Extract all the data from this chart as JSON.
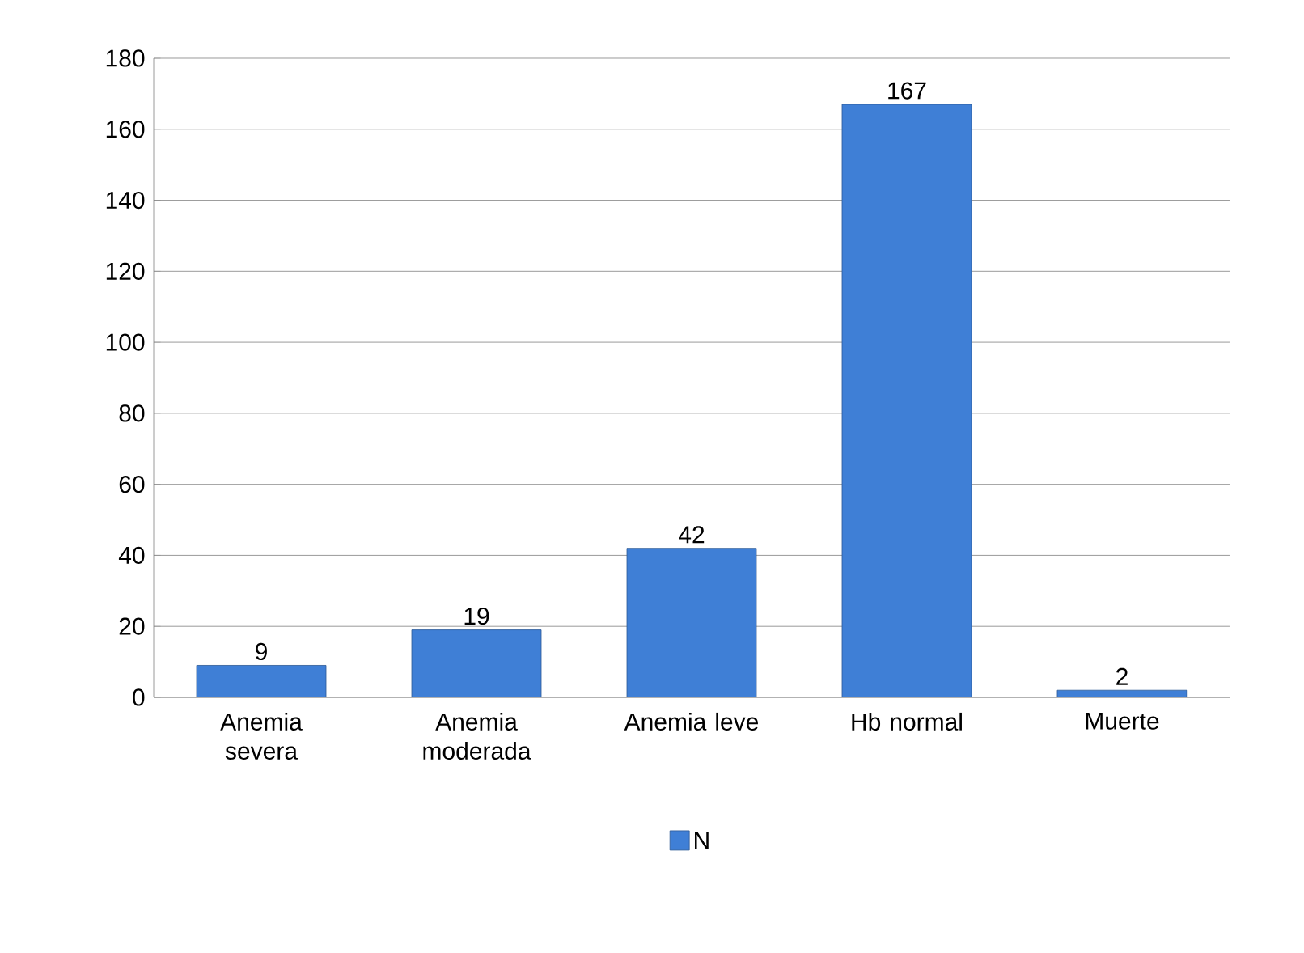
{
  "chart_data": {
    "type": "bar",
    "categories": [
      "Anemia severa",
      "Anemia moderada",
      "Anemia leve",
      "Hb normal",
      "Muerte"
    ],
    "series": [
      {
        "name": "N",
        "color": "#3f7fd6",
        "values": [
          9,
          19,
          42,
          167,
          2
        ]
      }
    ],
    "ylim": [
      0,
      180
    ],
    "yticks": [
      0,
      20,
      40,
      60,
      80,
      100,
      120,
      140,
      160,
      180
    ],
    "grid": "y",
    "legend": "bottom",
    "data_labels": true
  }
}
